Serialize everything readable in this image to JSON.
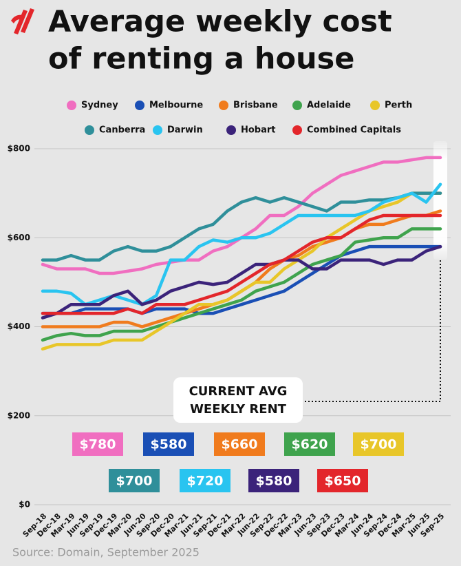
{
  "chart_data": {
    "type": "line",
    "title": [
      "Average weekly cost",
      "of renting a house"
    ],
    "source": "Source: Domain, September 2025",
    "annotation": [
      "CURRENT AVG",
      "WEEKLY RENT"
    ],
    "categories": [
      "Sep-18",
      "Dec-18",
      "Mar-19",
      "Jun-19",
      "Sep-19",
      "Dec-19",
      "Mar-20",
      "Jun-20",
      "Sep-20",
      "Dec-20",
      "Mar-21",
      "Jun-21",
      "Sep-21",
      "Dec-21",
      "Mar-22",
      "Jun-22",
      "Sep-22",
      "Dec-22",
      "Mar-23",
      "Jun-23",
      "Sep-23",
      "Dec-23",
      "Mar-24",
      "Jun-24",
      "Sep-24",
      "Dec-24",
      "Mar-25",
      "Jun-25",
      "Sep-25"
    ],
    "ylim": [
      0,
      800
    ],
    "yticks": [
      {
        "value": 0,
        "label": "$0"
      },
      {
        "value": 200,
        "label": "$200"
      },
      {
        "value": 400,
        "label": "$400"
      },
      {
        "value": 600,
        "label": "$600"
      },
      {
        "value": 800,
        "label": "$800"
      }
    ],
    "grid": true,
    "series": [
      {
        "name": "Sydney",
        "color": "#f06ec0",
        "values": [
          540,
          530,
          530,
          530,
          520,
          520,
          525,
          530,
          540,
          545,
          550,
          550,
          570,
          580,
          600,
          620,
          650,
          650,
          670,
          700,
          720,
          740,
          750,
          760,
          770,
          770,
          775,
          780,
          780
        ],
        "value_labels": [
          null,
          null,
          null,
          null,
          null,
          null,
          null,
          null,
          null,
          null,
          null,
          null,
          null,
          null,
          null,
          null,
          null,
          null,
          null,
          null,
          null,
          null,
          null,
          null,
          null,
          null,
          null,
          null,
          "$780"
        ]
      },
      {
        "name": "Melbourne",
        "color": "#1a4fb5",
        "values": [
          430,
          430,
          430,
          440,
          440,
          440,
          440,
          430,
          440,
          440,
          440,
          430,
          430,
          440,
          450,
          460,
          470,
          480,
          500,
          520,
          540,
          560,
          570,
          580,
          580,
          580,
          580,
          580,
          580
        ],
        "value_labels": [
          null,
          null,
          null,
          null,
          null,
          null,
          null,
          null,
          null,
          null,
          null,
          null,
          null,
          null,
          null,
          null,
          null,
          null,
          null,
          null,
          null,
          null,
          null,
          null,
          null,
          null,
          null,
          null,
          "$580"
        ]
      },
      {
        "name": "Brisbane",
        "color": "#f07b1d",
        "values": [
          400,
          400,
          400,
          400,
          400,
          410,
          410,
          400,
          410,
          420,
          430,
          440,
          450,
          460,
          480,
          500,
          530,
          550,
          560,
          580,
          590,
          600,
          620,
          630,
          630,
          640,
          650,
          650,
          660
        ],
        "value_labels": [
          null,
          null,
          null,
          null,
          null,
          null,
          null,
          null,
          null,
          null,
          null,
          null,
          null,
          null,
          null,
          null,
          null,
          null,
          null,
          null,
          null,
          null,
          null,
          null,
          null,
          null,
          null,
          null,
          "$660"
        ]
      },
      {
        "name": "Adelaide",
        "color": "#3fa34d",
        "values": [
          370,
          380,
          385,
          380,
          380,
          390,
          390,
          390,
          400,
          410,
          420,
          430,
          440,
          450,
          460,
          480,
          490,
          500,
          520,
          540,
          550,
          560,
          590,
          595,
          600,
          600,
          620,
          620,
          620
        ],
        "value_labels": [
          null,
          null,
          null,
          null,
          null,
          null,
          null,
          null,
          null,
          null,
          null,
          null,
          null,
          null,
          null,
          null,
          null,
          null,
          null,
          null,
          null,
          null,
          null,
          null,
          null,
          null,
          null,
          null,
          "$620"
        ]
      },
      {
        "name": "Perth",
        "color": "#e8c629",
        "values": [
          350,
          360,
          360,
          360,
          360,
          370,
          370,
          370,
          390,
          410,
          430,
          450,
          450,
          460,
          480,
          500,
          500,
          530,
          550,
          570,
          600,
          620,
          640,
          660,
          670,
          680,
          700,
          700,
          700
        ],
        "value_labels": [
          null,
          null,
          null,
          null,
          null,
          null,
          null,
          null,
          null,
          null,
          null,
          null,
          null,
          null,
          null,
          null,
          null,
          null,
          null,
          null,
          null,
          null,
          null,
          null,
          null,
          null,
          null,
          null,
          "$700"
        ]
      },
      {
        "name": "Canberra",
        "color": "#2f8f9a",
        "values": [
          550,
          550,
          560,
          550,
          550,
          570,
          580,
          570,
          570,
          580,
          600,
          620,
          630,
          660,
          680,
          690,
          680,
          690,
          680,
          670,
          660,
          680,
          680,
          685,
          685,
          690,
          700,
          700,
          700
        ],
        "value_labels": [
          null,
          null,
          null,
          null,
          null,
          null,
          null,
          null,
          null,
          null,
          null,
          null,
          null,
          null,
          null,
          null,
          null,
          null,
          null,
          null,
          null,
          null,
          null,
          null,
          null,
          null,
          null,
          null,
          "$700"
        ]
      },
      {
        "name": "Darwin",
        "color": "#29c4f0",
        "values": [
          480,
          480,
          475,
          450,
          460,
          470,
          460,
          450,
          470,
          550,
          550,
          580,
          595,
          590,
          600,
          600,
          610,
          630,
          650,
          650,
          650,
          650,
          650,
          660,
          680,
          690,
          700,
          680,
          720
        ],
        "value_labels": [
          null,
          null,
          null,
          null,
          null,
          null,
          null,
          null,
          null,
          null,
          null,
          null,
          null,
          null,
          null,
          null,
          null,
          null,
          null,
          null,
          null,
          null,
          null,
          null,
          null,
          null,
          null,
          null,
          "$720"
        ]
      },
      {
        "name": "Hobart",
        "color": "#3b237a",
        "values": [
          420,
          430,
          450,
          450,
          450,
          470,
          480,
          450,
          460,
          480,
          490,
          500,
          495,
          500,
          520,
          540,
          540,
          550,
          550,
          530,
          530,
          550,
          550,
          550,
          540,
          550,
          550,
          570,
          580
        ],
        "value_labels": [
          null,
          null,
          null,
          null,
          null,
          null,
          null,
          null,
          null,
          null,
          null,
          null,
          null,
          null,
          null,
          null,
          null,
          null,
          null,
          null,
          null,
          null,
          null,
          null,
          null,
          null,
          null,
          null,
          "$580"
        ]
      },
      {
        "name": "Combined Capitals",
        "color": "#e3262b",
        "values": [
          430,
          430,
          430,
          430,
          430,
          430,
          440,
          430,
          450,
          450,
          450,
          460,
          470,
          480,
          500,
          520,
          540,
          550,
          570,
          590,
          600,
          600,
          620,
          640,
          650,
          650,
          650,
          650,
          650
        ],
        "value_labels": [
          null,
          null,
          null,
          null,
          null,
          null,
          null,
          null,
          null,
          null,
          null,
          null,
          null,
          null,
          null,
          null,
          null,
          null,
          null,
          null,
          null,
          null,
          null,
          null,
          null,
          null,
          null,
          null,
          "$650"
        ]
      }
    ]
  }
}
